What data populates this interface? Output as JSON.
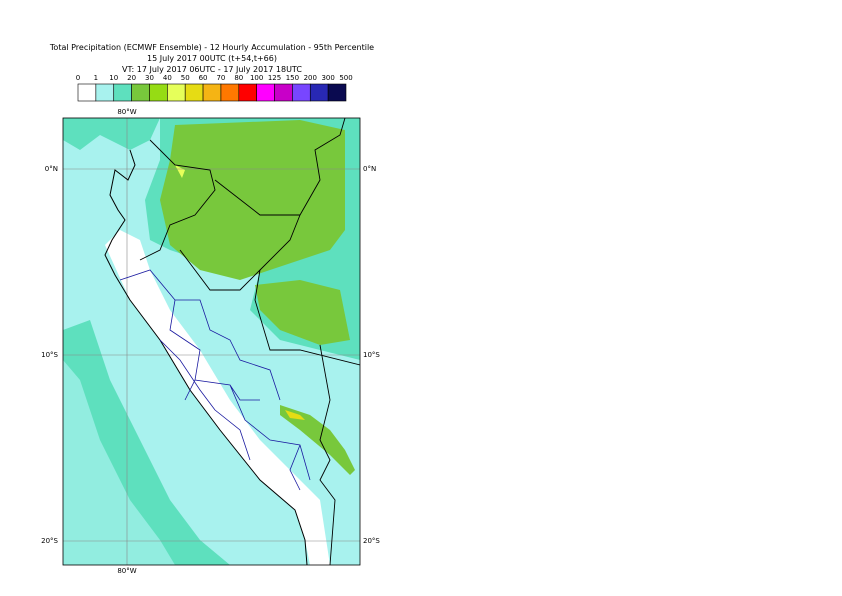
{
  "title": [
    "Total Precipitation (ECMWF Ensemble) - 12 Hourly Accumulation - 95th Percentile",
    "15 July 2017 00UTC (t+54,t+66)",
    "VT: 17 July 2017 06UTC - 17 July 2017 18UTC"
  ],
  "legend": {
    "labels": [
      "0",
      "1",
      "10",
      "20",
      "30",
      "40",
      "50",
      "60",
      "70",
      "80",
      "100",
      "125",
      "150",
      "200",
      "300",
      "500"
    ],
    "colors": [
      "#ffffff",
      "#a8f2ee",
      "#5ee0be",
      "#78c83c",
      "#96dc14",
      "#e6ff5a",
      "#e6dc14",
      "#f5b414",
      "#ff7800",
      "#ff0000",
      "#ff00ff",
      "#c800c8",
      "#7846ff",
      "#2828b4",
      "#0a0a50"
    ]
  },
  "map": {
    "lon_labels": [
      "80°W"
    ],
    "lat_labels": [
      "0°N",
      "10°S",
      "20°S"
    ]
  }
}
